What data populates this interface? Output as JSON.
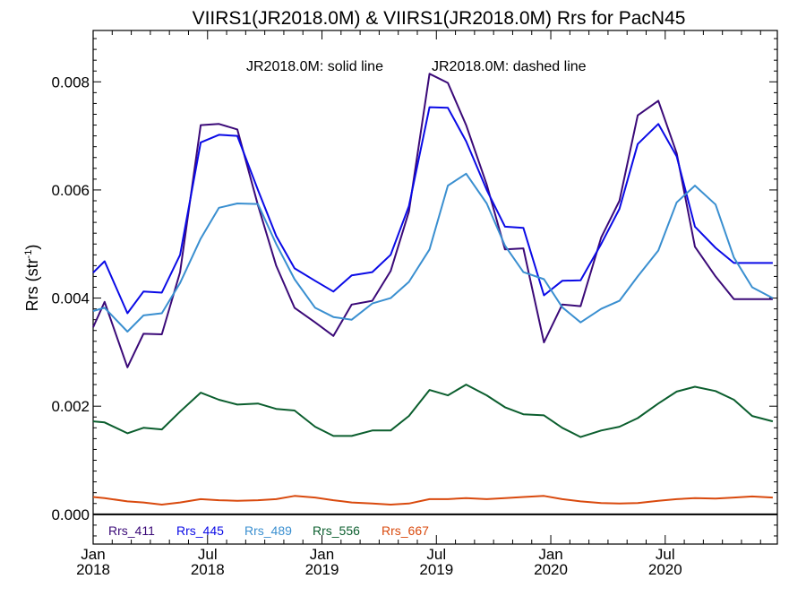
{
  "chart_data": {
    "type": "line",
    "title": "VIIRS1(JR2018.0M) & VIIRS1(JR2018.0M)  Rrs for PacN45",
    "annotation_solid": "JR2018.0M: solid line",
    "annotation_dashed": "JR2018.0M: dashed line",
    "ylabel_main": "Rrs (str",
    "ylabel_sup": "-1",
    "ylabel_close": ")",
    "ylim": [
      -0.00055,
      0.00895
    ],
    "xlim": [
      2018.0,
      2020.99
    ],
    "yticks": [
      {
        "value": 0.0,
        "label": "0.000"
      },
      {
        "value": 0.002,
        "label": "0.002"
      },
      {
        "value": 0.004,
        "label": "0.004"
      },
      {
        "value": 0.006,
        "label": "0.006"
      },
      {
        "value": 0.008,
        "label": "0.008"
      }
    ],
    "xticks": [
      {
        "value": 2018.0,
        "month": "Jan",
        "year": "2018"
      },
      {
        "value": 2018.5,
        "month": "Jul",
        "year": "2018"
      },
      {
        "value": 2019.0,
        "month": "Jan",
        "year": "2019"
      },
      {
        "value": 2019.5,
        "month": "Jul",
        "year": "2019"
      },
      {
        "value": 2020.0,
        "month": "Jan",
        "year": "2020"
      },
      {
        "value": 2020.5,
        "month": "Jul",
        "year": "2020"
      }
    ],
    "x": [
      2018.0,
      2018.05,
      2018.15,
      2018.22,
      2018.3,
      2018.38,
      2018.47,
      2018.55,
      2018.63,
      2018.72,
      2018.8,
      2018.88,
      2018.97,
      2019.05,
      2019.13,
      2019.22,
      2019.3,
      2019.38,
      2019.47,
      2019.55,
      2019.63,
      2019.72,
      2019.8,
      2019.88,
      2019.97,
      2020.05,
      2020.13,
      2020.22,
      2020.3,
      2020.38,
      2020.47,
      2020.55,
      2020.63,
      2020.72,
      2020.8,
      2020.88,
      2020.97
    ],
    "series": [
      {
        "name": "Rrs_411",
        "color": "#3b0a78",
        "values": [
          0.00346,
          0.00393,
          0.00272,
          0.00334,
          0.00333,
          0.00448,
          0.0072,
          0.00722,
          0.00712,
          0.00572,
          0.0046,
          0.00382,
          0.00355,
          0.0033,
          0.00388,
          0.00395,
          0.0045,
          0.0056,
          0.00815,
          0.00798,
          0.0072,
          0.0061,
          0.0049,
          0.00492,
          0.00318,
          0.00388,
          0.00385,
          0.00512,
          0.0058,
          0.00738,
          0.00765,
          0.00668,
          0.00495,
          0.0044,
          0.00398,
          0.00398,
          0.00398
        ]
      },
      {
        "name": "Rrs_445",
        "color": "#0a0ae6",
        "values": [
          0.00447,
          0.00468,
          0.00372,
          0.00412,
          0.0041,
          0.0048,
          0.00688,
          0.00702,
          0.007,
          0.006,
          0.00515,
          0.00455,
          0.00432,
          0.00412,
          0.00442,
          0.00448,
          0.0048,
          0.0057,
          0.00753,
          0.00752,
          0.0069,
          0.006,
          0.00532,
          0.0053,
          0.00405,
          0.00432,
          0.00433,
          0.005,
          0.00565,
          0.00685,
          0.00722,
          0.00662,
          0.00532,
          0.00493,
          0.00465,
          0.00465,
          0.00465
        ]
      },
      {
        "name": "Rrs_489",
        "color": "#3a8fd0",
        "values": [
          0.00376,
          0.00382,
          0.00338,
          0.00368,
          0.00372,
          0.00428,
          0.0051,
          0.00567,
          0.00575,
          0.00574,
          0.005,
          0.00435,
          0.00382,
          0.00365,
          0.0036,
          0.0039,
          0.004,
          0.0043,
          0.0049,
          0.00608,
          0.0063,
          0.00575,
          0.00497,
          0.00448,
          0.00435,
          0.00383,
          0.00355,
          0.0038,
          0.00395,
          0.0044,
          0.00488,
          0.00577,
          0.00608,
          0.00573,
          0.00475,
          0.0042,
          0.004
        ]
      },
      {
        "name": "Rrs_556",
        "color": "#0b5e2e",
        "values": [
          0.00172,
          0.0017,
          0.0015,
          0.0016,
          0.00157,
          0.0019,
          0.00225,
          0.00212,
          0.00203,
          0.00205,
          0.00195,
          0.00192,
          0.00162,
          0.00145,
          0.00145,
          0.00155,
          0.00155,
          0.00182,
          0.0023,
          0.0022,
          0.0024,
          0.0022,
          0.00198,
          0.00185,
          0.00183,
          0.0016,
          0.00143,
          0.00155,
          0.00162,
          0.00178,
          0.00205,
          0.00227,
          0.00236,
          0.00228,
          0.00212,
          0.00182,
          0.00172
        ]
      },
      {
        "name": "Rrs_667",
        "color": "#d94a0e",
        "values": [
          0.00032,
          0.0003,
          0.00024,
          0.00022,
          0.00018,
          0.00022,
          0.00028,
          0.00026,
          0.00025,
          0.00026,
          0.00028,
          0.00034,
          0.00031,
          0.00026,
          0.00022,
          0.0002,
          0.00018,
          0.0002,
          0.00028,
          0.00028,
          0.0003,
          0.00028,
          0.0003,
          0.00032,
          0.00034,
          0.00028,
          0.00024,
          0.00021,
          0.0002,
          0.00021,
          0.00025,
          0.00028,
          0.0003,
          0.00029,
          0.00031,
          0.00033,
          0.00031
        ]
      }
    ]
  }
}
